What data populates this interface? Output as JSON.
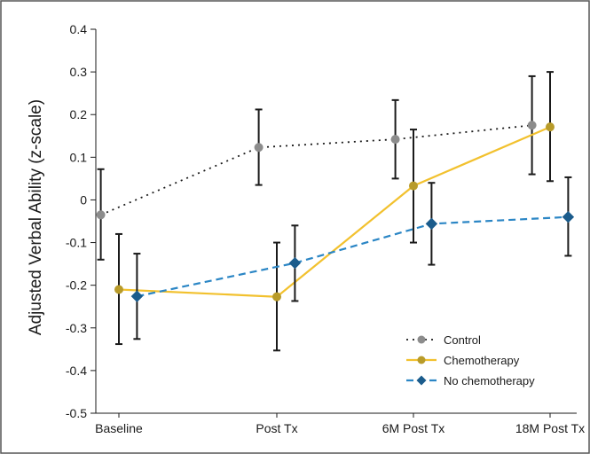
{
  "chart_data": {
    "type": "line",
    "title": "",
    "xlabel": "",
    "ylabel": "Adjusted Verbal Ability (z-scale)",
    "categories": [
      "Baseline",
      "Post Tx",
      "6M Post Tx",
      "18M Post Tx"
    ],
    "ylim": [
      -0.5,
      0.4
    ],
    "yticks": [
      -0.5,
      -0.4,
      -0.3,
      -0.2,
      -0.1,
      0,
      0.1,
      0.2,
      0.3,
      0.4
    ],
    "ytick_labels": [
      "-0.5",
      "-0.4",
      "-0.3",
      "-0.2",
      "-0.1",
      "0",
      "0.1",
      "0.2",
      "0.3",
      "0.4"
    ],
    "grid": false,
    "legend_position": "bottom-right",
    "series": [
      {
        "name": "Control",
        "color": "#8c8c8c",
        "line_color": "#1a1a1a",
        "line_style": "dotted",
        "marker": "circle",
        "offset": -0.12,
        "values": [
          -0.035,
          0.123,
          0.142,
          0.175
        ],
        "error_low": [
          -0.14,
          0.035,
          0.05,
          0.06
        ],
        "error_high": [
          0.072,
          0.212,
          0.234,
          0.29
        ]
      },
      {
        "name": "Chemotherapy",
        "color": "#b89b2a",
        "line_color": "#f2c12e",
        "line_style": "solid",
        "marker": "circle",
        "offset": 0.0,
        "values": [
          -0.21,
          -0.227,
          0.033,
          0.171
        ],
        "error_low": [
          -0.338,
          -0.353,
          -0.1,
          0.044
        ],
        "error_high": [
          -0.08,
          -0.1,
          0.165,
          0.3
        ]
      },
      {
        "name": "No chemotherapy",
        "color": "#1b5c8c",
        "line_color": "#2b86c5",
        "line_style": "dashed",
        "marker": "diamond",
        "offset": 0.12,
        "values": [
          -0.226,
          -0.148,
          -0.056,
          -0.04
        ],
        "error_low": [
          -0.326,
          -0.237,
          -0.152,
          -0.131
        ],
        "error_high": [
          -0.126,
          -0.06,
          0.04,
          0.053
        ]
      }
    ]
  }
}
